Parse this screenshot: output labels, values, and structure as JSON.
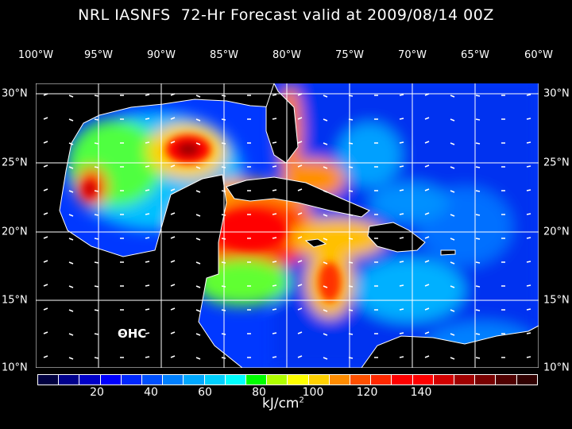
{
  "title": "NRL IASNFS  72-Hr Forecast valid at 2009/08/14 00Z",
  "lon_labels": [
    "100°W",
    "95°W",
    "90°W",
    "85°W",
    "80°W",
    "75°W",
    "70°W",
    "65°W",
    "60°W"
  ],
  "lat_labels": [
    "30°N",
    "25°N",
    "20°N",
    "15°N",
    "10°N"
  ],
  "field_label": "OHC",
  "colorbar": {
    "tick_labels": [
      "20",
      "40",
      "60",
      "80",
      "100",
      "120",
      "140"
    ],
    "units": "kJ/cm",
    "units_exp": "2",
    "colors": [
      "#000040",
      "#00008c",
      "#0000c8",
      "#0000ff",
      "#0028ff",
      "#0050ff",
      "#0080ff",
      "#00a8ff",
      "#00d0ff",
      "#00ffff",
      "#00ff00",
      "#b0ff00",
      "#ffff00",
      "#ffd000",
      "#ff8c00",
      "#ff5000",
      "#ff2800",
      "#ff0000",
      "#ff0000",
      "#d20000",
      "#a00000",
      "#780000",
      "#500000",
      "#300000"
    ]
  }
}
